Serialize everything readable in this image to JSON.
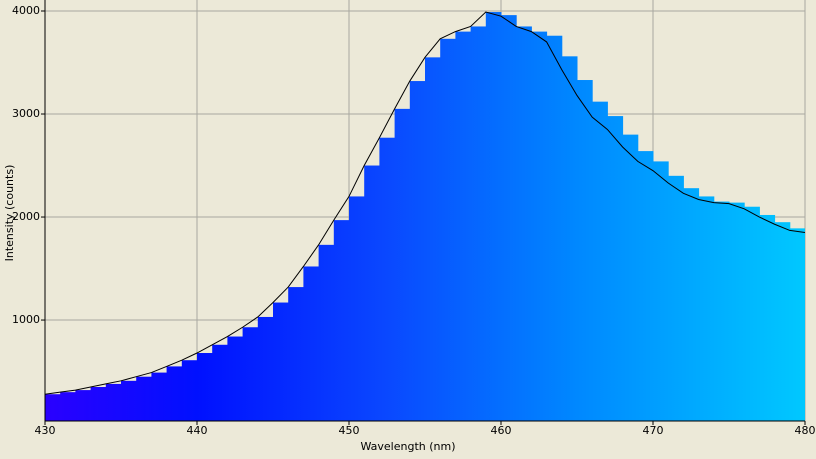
{
  "chart_data": {
    "type": "spectrum",
    "x_label": "Wavelength (nm)",
    "y_label": "Intensity (counts)",
    "x": [
      430,
      431,
      432,
      433,
      434,
      435,
      436,
      437,
      438,
      439,
      440,
      441,
      442,
      443,
      444,
      445,
      446,
      447,
      448,
      449,
      450,
      451,
      452,
      453,
      454,
      455,
      456,
      457,
      458,
      459,
      460,
      461,
      462,
      463,
      464,
      465,
      466,
      467,
      468,
      469,
      470,
      471,
      472,
      473,
      474,
      475,
      476,
      477,
      478,
      479,
      480
    ],
    "series": [
      {
        "color": "#0050ff",
        "values": [
          280,
          300,
          320,
          350,
          380,
          410,
          450,
          490,
          550,
          610,
          680,
          760,
          840,
          930,
          1030,
          1170,
          1320,
          1520,
          1730,
          1970,
          2200,
          2500,
          2770,
          3050,
          3320,
          3550,
          3730,
          3800,
          3850,
          3990,
          3960,
          3850,
          3800,
          3760,
          3560,
          3330,
          3120,
          2980,
          2800,
          2640,
          2540,
          2400,
          2280,
          2200,
          2150,
          2140,
          2100,
          2020,
          1950,
          1890,
          1850
        ]
      },
      {
        "color": "#000000",
        "values": [
          280,
          300,
          320,
          350,
          380,
          410,
          450,
          490,
          550,
          610,
          680,
          760,
          840,
          930,
          1030,
          1170,
          1320,
          1520,
          1730,
          1970,
          2200,
          2500,
          2770,
          3050,
          3320,
          3550,
          3730,
          3800,
          3850,
          3990,
          3950,
          3850,
          3800,
          3700,
          3430,
          3180,
          2970,
          2850,
          2680,
          2540,
          2450,
          2330,
          2230,
          2170,
          2140,
          2130,
          2080,
          2000,
          1930,
          1870,
          1850
        ]
      }
    ],
    "xlim": [
      430,
      480
    ],
    "ylim": [
      20,
      4000
    ],
    "xticks": [
      430,
      440,
      450,
      460,
      470,
      480
    ],
    "yticks": [
      1000,
      2000,
      3000,
      4000
    ],
    "grid": true
  }
}
